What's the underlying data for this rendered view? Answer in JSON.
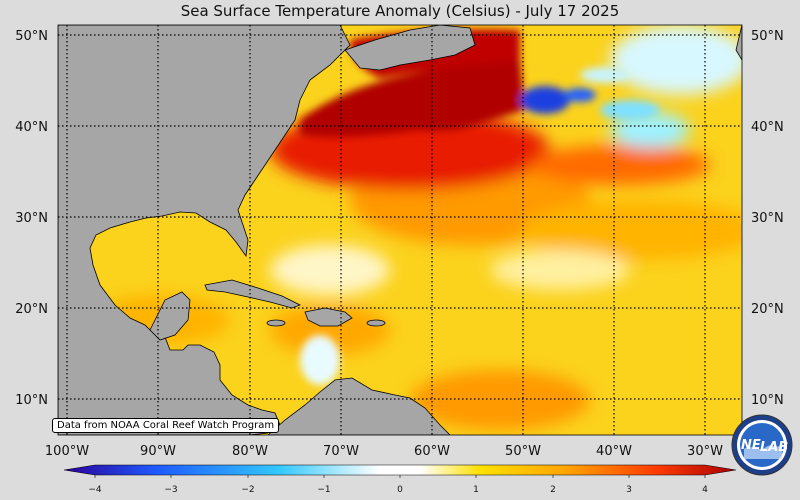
{
  "title": "Sea Surface Temperature Anomaly (Celsius) - July 17 2025",
  "credit": "Data from NOAA Coral Reef Watch Program",
  "logo": {
    "text_left": "NE",
    "text_right": "LAB",
    "icon": "nesdis-lab-logo"
  },
  "latitudes": [
    "50°N",
    "40°N",
    "30°N",
    "20°N",
    "10°N"
  ],
  "longitudes": [
    "100°W",
    "90°W",
    "80°W",
    "70°W",
    "60°W",
    "50°W",
    "40°W",
    "30°W"
  ],
  "colorbar": {
    "min": -4,
    "max": 4,
    "ticks": [
      "−4",
      "−3",
      "−2",
      "−1",
      "0",
      "1",
      "2",
      "3",
      "4"
    ],
    "colors": [
      "#2b0099",
      "#1e5cff",
      "#33c8ff",
      "#ffffff",
      "#ffe000",
      "#ffa200",
      "#ff3c00",
      "#aa0000"
    ]
  },
  "colors": {
    "land": "#a6a6a6",
    "ocean_base": "#fbd21c",
    "warm": "#ff8a00",
    "hot": "#e81a00",
    "extreme": "#b00000",
    "cool": "#9ef2ff",
    "cold": "#1e40e0"
  }
}
